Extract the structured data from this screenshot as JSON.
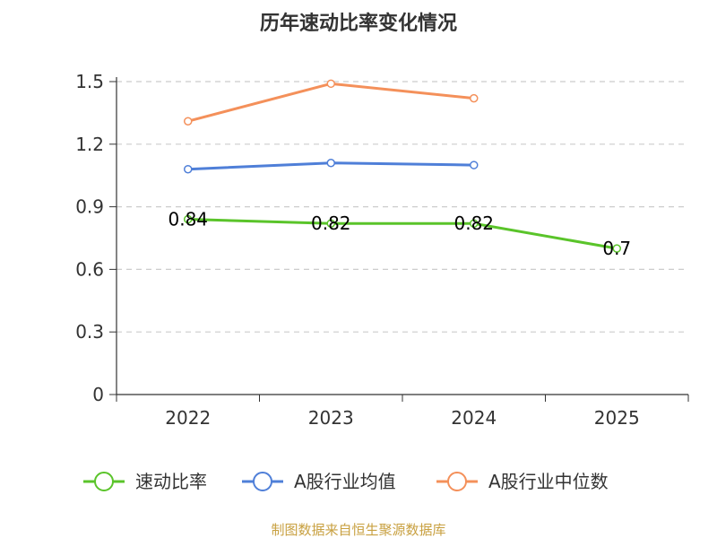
{
  "chart_data": {
    "type": "line",
    "title": "历年速动比率变化情况",
    "categories": [
      "2022",
      "2023",
      "2024",
      "2025"
    ],
    "ylim": [
      0,
      1.5
    ],
    "yticks": [
      "0",
      "0.3",
      "0.6",
      "0.9",
      "1.2",
      "1.5"
    ],
    "ytick_values": [
      0,
      0.3,
      0.6,
      0.9,
      1.2,
      1.5
    ],
    "grid": true,
    "legend_position": "bottom",
    "series": [
      {
        "name": "速动比率",
        "values": [
          0.84,
          0.82,
          0.82,
          0.7
        ],
        "labels": [
          "0.84",
          "0.82",
          "0.82",
          "0.7"
        ],
        "color": "#5ac42a"
      },
      {
        "name": "A股行业均值",
        "values": [
          1.08,
          1.11,
          1.1,
          null
        ],
        "color": "#4f7fd8"
      },
      {
        "name": "A股行业中位数",
        "values": [
          1.31,
          1.49,
          1.42,
          null
        ],
        "color": "#f4905a"
      }
    ]
  },
  "source": "制图数据来自恒生聚源数据库"
}
